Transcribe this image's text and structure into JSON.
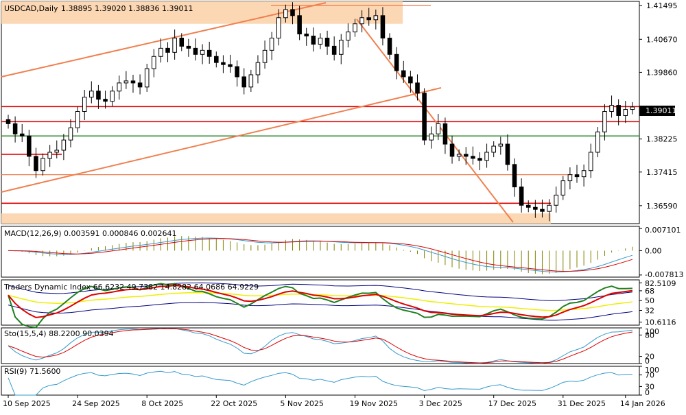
{
  "chart_data": {
    "type": "candlestick",
    "symbol": "USDCAD",
    "timeframe": "Daily",
    "header": {
      "title": "USDCAD,Daily",
      "ohlc_text": "1.38895 1.39020 1.38836 1.39011"
    },
    "last_price_label": "1.39011",
    "price_axis": {
      "ylim": [
        1.3615,
        1.416
      ],
      "ticks": [
        "1.41495",
        "1.40670",
        "1.39860",
        "1.39011",
        "1.38225",
        "1.37415",
        "1.36590"
      ]
    },
    "x_axis": {
      "ticks": [
        {
          "label": "10 Sep 2025",
          "idx": 0
        },
        {
          "label": "24 Sep 2025",
          "idx": 10
        },
        {
          "label": "8 Oct 2025",
          "idx": 20
        },
        {
          "label": "22 Oct 2025",
          "idx": 30
        },
        {
          "label": "5 Nov 2025",
          "idx": 40
        },
        {
          "label": "19 Nov 2025",
          "idx": 50
        },
        {
          "label": "3 Dec 2025",
          "idx": 60
        },
        {
          "label": "17 Dec 2025",
          "idx": 70
        },
        {
          "label": "31 Dec 2025",
          "idx": 80
        },
        {
          "label": "14 Jan 2026",
          "idx": 89
        }
      ]
    },
    "candles_close": [
      1.386,
      1.3835,
      1.383,
      1.378,
      1.3745,
      1.3775,
      1.379,
      1.3795,
      1.382,
      1.385,
      1.389,
      1.3925,
      1.394,
      1.392,
      1.3915,
      1.394,
      1.396,
      1.3965,
      1.396,
      1.395,
      1.3995,
      1.4025,
      1.4045,
      1.4035,
      1.407,
      1.405,
      1.4045,
      1.403,
      1.404,
      1.4025,
      1.401,
      1.4005,
      1.4,
      1.3975,
      1.395,
      1.398,
      1.401,
      1.404,
      1.407,
      1.412,
      1.414,
      1.4125,
      1.408,
      1.4075,
      1.4055,
      1.407,
      1.405,
      1.403,
      1.4065,
      1.4085,
      1.4105,
      1.412,
      1.4115,
      1.4125,
      1.407,
      1.403,
      1.399,
      1.3975,
      1.396,
      1.3935,
      1.382,
      1.3835,
      1.386,
      1.381,
      1.378,
      1.3785,
      1.378,
      1.3775,
      1.377,
      1.379,
      1.3805,
      1.381,
      1.376,
      1.3705,
      1.366,
      1.3655,
      1.365,
      1.3645,
      1.366,
      1.3685,
      1.372,
      1.3735,
      1.373,
      1.3745,
      1.379,
      1.384,
      1.389,
      1.3905,
      1.388,
      1.3895,
      1.3901
    ],
    "levels": [
      {
        "name": "resistance-red-1",
        "price": 1.3902,
        "color": "#dd0000"
      },
      {
        "name": "resistance-red-2",
        "price": 1.3865,
        "color": "#dd0000"
      },
      {
        "name": "support-green",
        "price": 1.383,
        "color": "#208020"
      },
      {
        "name": "support-red-3",
        "price": 1.3785,
        "color": "#dd0000"
      },
      {
        "name": "orange-level",
        "price": 1.3735,
        "color": "#f08050"
      },
      {
        "name": "support-red-4",
        "price": 1.3665,
        "color": "#dd0000"
      },
      {
        "name": "top-orange-level",
        "price": 1.415,
        "color": "#f08050"
      }
    ],
    "zones": [
      {
        "name": "supply-zone",
        "from": 1.4105,
        "to": 1.416,
        "color": "#fbd7b3"
      },
      {
        "name": "demand-zone",
        "from": 1.3615,
        "to": 1.364,
        "color": "#fbd7b3"
      }
    ],
    "indicators": {
      "macd": {
        "label": "MACD(12,26,9) 0.003591 0.000846 0.002641",
        "ticks": [
          "0.007101",
          "0.00",
          "-0.007813"
        ],
        "ylim": [
          -0.0085,
          0.0078
        ]
      },
      "tdi": {
        "label": "Traders Dynamic Index 66.6232 49.7382 14.8282 64.0686 64.9229",
        "ticks": [
          "82.5109",
          "68",
          "50",
          "32",
          "10.6116"
        ],
        "ylim": [
          5,
          88
        ]
      },
      "stoch": {
        "label": "Sto(15,5,4) 88.2200 90.0394",
        "ticks": [
          "100",
          "80",
          "20",
          "0"
        ],
        "ylim": [
          0,
          100
        ]
      },
      "rsi": {
        "label": "RSI(9) 71.5600",
        "ticks": [
          "100",
          "70",
          "30",
          "0"
        ],
        "ylim": [
          0,
          100
        ]
      }
    },
    "colors": {
      "bull": "#ffffff",
      "bear": "#000000",
      "trendline": "#f08050",
      "macd_hist": "#808000",
      "macd_signal": "#dd0000",
      "macd_main": "#3399cc",
      "tdi_green": "#208020",
      "tdi_red": "#dd0000",
      "tdi_yellow": "#eeee00",
      "tdi_band": "#000080",
      "stoch_main": "#3399cc",
      "stoch_signal": "#dd0000",
      "rsi": "#3399cc"
    }
  }
}
